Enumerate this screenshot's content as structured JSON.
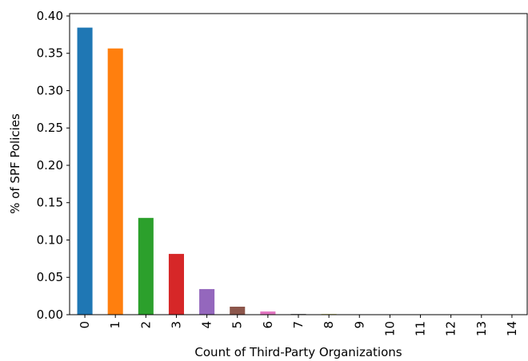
{
  "chart_data": {
    "type": "bar",
    "xlabel": "Count of Third-Party Organizations",
    "ylabel": "% of SPF Policies",
    "categories": [
      "0",
      "1",
      "2",
      "3",
      "4",
      "5",
      "6",
      "7",
      "8",
      "9",
      "10",
      "11",
      "12",
      "13",
      "14"
    ],
    "values": [
      0.3844,
      0.3565,
      0.1296,
      0.0814,
      0.0343,
      0.0107,
      0.0043,
      0.001,
      0.0008,
      0.0005,
      0.0003,
      0.0003,
      0.0003,
      0.0003,
      0.0003
    ],
    "colors": [
      "#1f77b4",
      "#ff7f0e",
      "#2ca02c",
      "#d62728",
      "#9467bd",
      "#8c564b",
      "#e377c2",
      "#7f7f7f",
      "#bcbd22",
      "#17becf",
      "#1f77b4",
      "#ff7f0e",
      "#2ca02c",
      "#d62728",
      "#9467bd"
    ],
    "ylim": [
      0,
      0.4032
    ],
    "yticks": [
      {
        "value": 0,
        "label": "0.00"
      },
      {
        "value": 0.05,
        "label": "0.05"
      },
      {
        "value": 0.1,
        "label": "0.10"
      },
      {
        "value": 0.15,
        "label": "0.15"
      },
      {
        "value": 0.2,
        "label": "0.20"
      },
      {
        "value": 0.25,
        "label": "0.25"
      },
      {
        "value": 0.3,
        "label": "0.30"
      },
      {
        "value": 0.35,
        "label": "0.35"
      },
      {
        "value": 0.4,
        "label": "0.40"
      }
    ],
    "grid": false
  }
}
